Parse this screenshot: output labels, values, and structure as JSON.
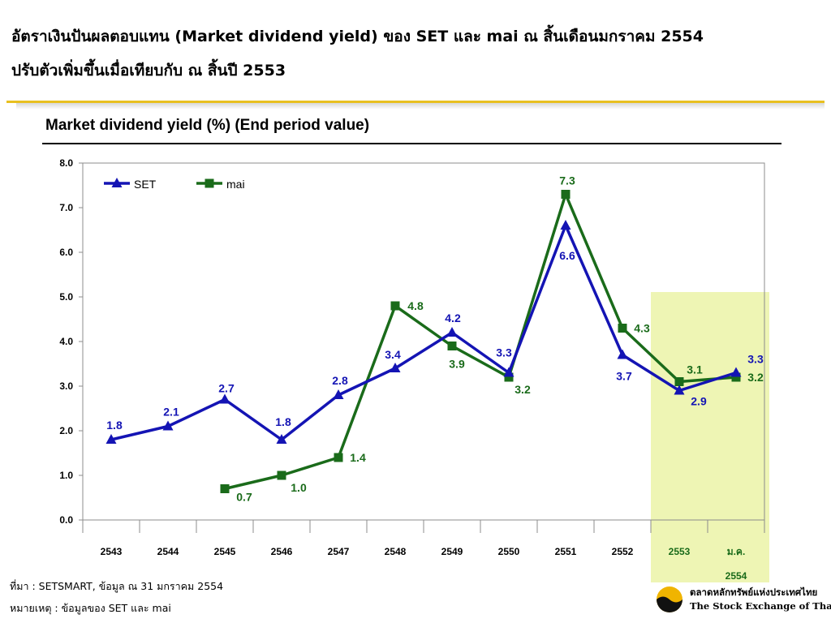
{
  "slide": {
    "headline_line1": "อัตราเงินปันผลตอบแทน (Market dividend yield) ของ SET และ mai ณ สิ้นเดือนมกราคม 2554",
    "headline_line2": "ปรับตัวเพิ่มขึ้นเมื่อเทียบกับ ณ สิ้นปี 2553",
    "footnote_source": "ที่มา : SETSMART, ข้อมูล ณ 31 มกราคม 2554",
    "footnote_note": "หมายเหตุ : ข้อมูลของ SET และ mai",
    "logo_thai": "ตลาดหลักทรัพย์แห่งประเทศไทย",
    "logo_english": "The Stock Exchange of Thailand"
  },
  "chart_data": {
    "type": "line",
    "title": "Market dividend yield (%) (End period value)",
    "categories": [
      "2543",
      "2544",
      "2545",
      "2546",
      "2547",
      "2548",
      "2549",
      "2550",
      "2551",
      "2552",
      "2553",
      "ม.ค.\n2554"
    ],
    "ylim": [
      0,
      8
    ],
    "yticks": [
      "0.0",
      "1.0",
      "2.0",
      "3.0",
      "4.0",
      "5.0",
      "6.0",
      "7.0",
      "8.0"
    ],
    "grid": false,
    "legend_position": "top-left",
    "highlight_categories": [
      "2553",
      "ม.ค.\n2554"
    ],
    "series": [
      {
        "name": "SET",
        "color": "#1414b4",
        "marker": "triangle",
        "values": [
          1.8,
          2.1,
          2.7,
          1.8,
          2.8,
          3.4,
          4.2,
          3.3,
          6.6,
          3.7,
          2.9,
          3.3
        ],
        "labels": [
          "1.8",
          "2.1",
          "2.7",
          "1.8",
          "2.8",
          "3.4",
          "4.2",
          "3.3",
          "6.6",
          "3.7",
          "2.9",
          "3.3"
        ]
      },
      {
        "name": "mai",
        "color": "#1a6b1a",
        "marker": "square",
        "values": [
          null,
          null,
          0.7,
          1.0,
          1.4,
          4.8,
          3.9,
          3.2,
          7.3,
          4.3,
          3.1,
          3.2
        ],
        "labels": [
          null,
          null,
          "0.7",
          "1.0",
          "1.4",
          "4.8",
          "3.9",
          "3.2",
          "7.3",
          "4.3",
          "3.1",
          "3.2"
        ]
      }
    ],
    "colors": {
      "highlight": "#eef5b4",
      "axis": "#8c8c8c"
    }
  }
}
